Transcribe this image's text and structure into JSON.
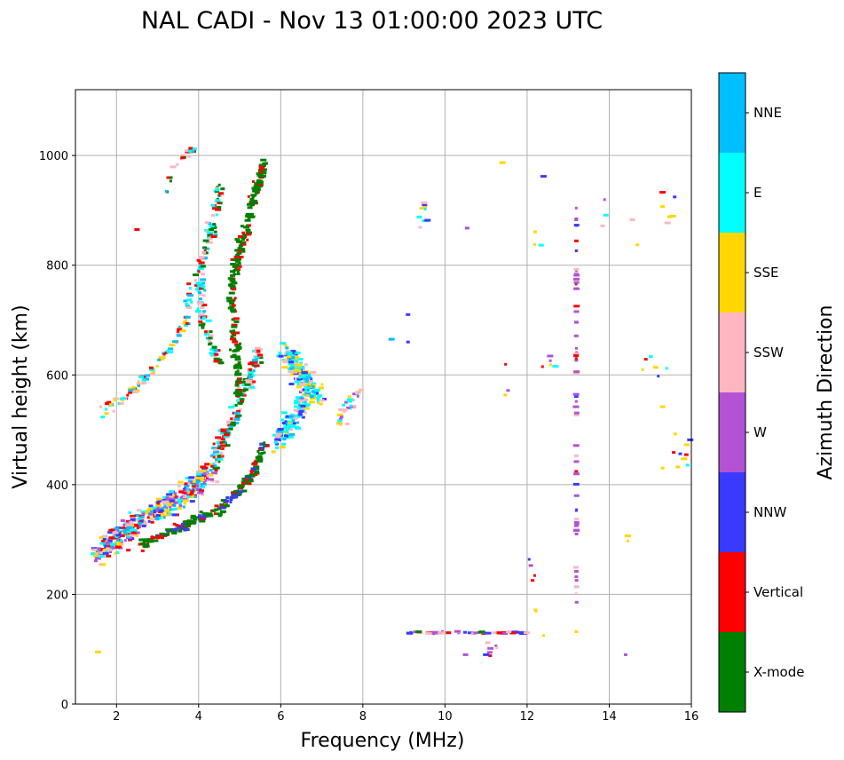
{
  "chart_data": {
    "type": "scatter",
    "title": "NAL CADI - Nov 13 01:00:00 2023 UTC",
    "xlabel": "Frequency (MHz)",
    "ylabel": "Virtual height (km)",
    "xlim": [
      1,
      16
    ],
    "ylim": [
      0,
      1120
    ],
    "xticks": [
      2,
      4,
      6,
      8,
      10,
      12,
      14,
      16
    ],
    "yticks": [
      0,
      200,
      400,
      600,
      800,
      1000
    ],
    "grid": true,
    "colorbar": {
      "title": "Azimuth Direction",
      "categories": [
        {
          "name": "X-mode",
          "color": "#008000"
        },
        {
          "name": "Vertical",
          "color": "#ff0000"
        },
        {
          "name": "NNW",
          "color": "#3a3aff"
        },
        {
          "name": "W",
          "color": "#b452d6"
        },
        {
          "name": "SSW",
          "color": "#ffb6c1"
        },
        {
          "name": "SSE",
          "color": "#ffd700"
        },
        {
          "name": "E",
          "color": "#00ffff"
        },
        {
          "name": "NNE",
          "color": "#00bfff"
        }
      ]
    },
    "clusters": [
      {
        "name": "F-trace-low-O",
        "points": [
          [
            1.5,
            265
          ],
          [
            1.8,
            290
          ],
          [
            2.1,
            310
          ],
          [
            2.4,
            325
          ],
          [
            2.8,
            345
          ],
          [
            3.2,
            360
          ],
          [
            3.6,
            380
          ],
          [
            4.0,
            400
          ],
          [
            4.3,
            430
          ]
        ],
        "spread": [
          0.35,
          40
        ],
        "count": 420,
        "colors": [
          "Vertical",
          "SSW",
          "NNW",
          "SSE",
          "NNE",
          "E",
          "W"
        ]
      },
      {
        "name": "F-trace-upper-O",
        "points": [
          [
            4.3,
            430
          ],
          [
            4.6,
            480
          ],
          [
            4.9,
            530
          ],
          [
            5.2,
            590
          ],
          [
            5.5,
            640
          ]
        ],
        "spread": [
          0.25,
          40
        ],
        "count": 160,
        "colors": [
          "Vertical",
          "NNE",
          "E",
          "X-mode",
          "SSW"
        ]
      },
      {
        "name": "F-trace-X",
        "points": [
          [
            2.6,
            290
          ],
          [
            3.2,
            310
          ],
          [
            3.8,
            330
          ],
          [
            4.4,
            350
          ],
          [
            4.9,
            380
          ],
          [
            5.3,
            420
          ],
          [
            5.6,
            470
          ]
        ],
        "spread": [
          0.18,
          18
        ],
        "count": 220,
        "colors": [
          "X-mode",
          "X-mode",
          "X-mode",
          "Vertical",
          "NNW"
        ]
      },
      {
        "name": "X-mode-stack",
        "points": [
          [
            5.0,
            560
          ],
          [
            4.9,
            660
          ],
          [
            4.8,
            760
          ],
          [
            5.1,
            850
          ],
          [
            5.4,
            940
          ],
          [
            5.6,
            985
          ]
        ],
        "spread": [
          0.2,
          30
        ],
        "count": 230,
        "colors": [
          "X-mode",
          "X-mode",
          "X-mode",
          "X-mode",
          "Vertical"
        ]
      },
      {
        "name": "middle-stack",
        "points": [
          [
            4.5,
            620
          ],
          [
            4.1,
            700
          ],
          [
            4.0,
            780
          ],
          [
            4.3,
            860
          ],
          [
            4.5,
            940
          ]
        ],
        "spread": [
          0.22,
          30
        ],
        "count": 130,
        "colors": [
          "Vertical",
          "X-mode",
          "NNE",
          "E",
          "SSW"
        ]
      },
      {
        "name": "oblique-upper",
        "points": [
          [
            1.6,
            530
          ],
          [
            2.0,
            550
          ],
          [
            2.5,
            580
          ],
          [
            3.0,
            620
          ],
          [
            3.4,
            660
          ],
          [
            3.7,
            700
          ],
          [
            3.8,
            760
          ]
        ],
        "spread": [
          0.15,
          18
        ],
        "count": 90,
        "colors": [
          "E",
          "NNE",
          "Vertical",
          "SSW",
          "SSE"
        ]
      },
      {
        "name": "spread-F-patch",
        "points": [
          [
            5.9,
            470
          ],
          [
            6.3,
            520
          ],
          [
            6.7,
            560
          ],
          [
            6.5,
            610
          ],
          [
            6.1,
            640
          ],
          [
            7.0,
            560
          ]
        ],
        "spread": [
          0.38,
          40
        ],
        "count": 300,
        "colors": [
          "E",
          "E",
          "NNE",
          "SSW",
          "SSE",
          "NNW"
        ]
      },
      {
        "name": "patch-right",
        "points": [
          [
            7.4,
            520
          ],
          [
            7.7,
            550
          ],
          [
            7.9,
            580
          ]
        ],
        "spread": [
          0.25,
          30
        ],
        "count": 30,
        "colors": [
          "W",
          "SSW",
          "SSE",
          "E"
        ]
      },
      {
        "name": "top-scatter",
        "points": [
          [
            3.2,
            930
          ],
          [
            3.5,
            995
          ],
          [
            3.8,
            1005
          ],
          [
            3.9,
            1010
          ]
        ],
        "spread": [
          0.15,
          15
        ],
        "count": 22,
        "colors": [
          "Vertical",
          "NNE",
          "X-mode",
          "SSW",
          "E"
        ]
      },
      {
        "name": "E-layer-echo",
        "points": [
          [
            9.0,
            130
          ],
          [
            9.6,
            130
          ],
          [
            10.2,
            130
          ],
          [
            10.8,
            130
          ],
          [
            11.5,
            130
          ],
          [
            12.0,
            130
          ]
        ],
        "spread": [
          0.3,
          4
        ],
        "count": 55,
        "colors": [
          "X-mode",
          "W",
          "NNW",
          "Vertical",
          "SSW"
        ]
      },
      {
        "name": "vertical-column",
        "points": [
          [
            13.2,
            200
          ],
          [
            13.2,
            350
          ],
          [
            13.2,
            500
          ],
          [
            13.2,
            650
          ],
          [
            13.2,
            800
          ],
          [
            13.2,
            920
          ]
        ],
        "spread": [
          0.02,
          60
        ],
        "count": 60,
        "colors": [
          "W",
          "W",
          "W",
          "NNW",
          "Vertical",
          "SSW"
        ]
      },
      {
        "name": "far-scatter",
        "points": [
          [
            9.5,
            900
          ],
          [
            10.5,
            870
          ],
          [
            11.5,
            580
          ],
          [
            12.2,
            840
          ],
          [
            12.5,
            620
          ],
          [
            14.0,
            890
          ],
          [
            14.5,
            860
          ],
          [
            15.0,
            620
          ],
          [
            15.5,
            900
          ],
          [
            15.8,
            460
          ],
          [
            14.5,
            300
          ],
          [
            12.3,
            180
          ],
          [
            12.1,
            250
          ],
          [
            11.2,
            90
          ]
        ],
        "spread": [
          0.5,
          55
        ],
        "count": 60,
        "colors": [
          "SSE",
          "W",
          "NNW",
          "SSW",
          "Vertical",
          "E",
          "SSE"
        ]
      }
    ],
    "fixed_points": [
      {
        "x": 1.55,
        "y": 95,
        "color": "SSE"
      },
      {
        "x": 2.5,
        "y": 865,
        "color": "Vertical"
      },
      {
        "x": 9.1,
        "y": 710,
        "color": "NNW"
      },
      {
        "x": 9.1,
        "y": 660,
        "color": "NNW"
      },
      {
        "x": 8.7,
        "y": 665,
        "color": "NNE"
      },
      {
        "x": 15.3,
        "y": 933,
        "color": "Vertical"
      },
      {
        "x": 15.3,
        "y": 907,
        "color": "SSE"
      },
      {
        "x": 15.3,
        "y": 542,
        "color": "SSE"
      },
      {
        "x": 15.3,
        "y": 430,
        "color": "SSE"
      },
      {
        "x": 12.4,
        "y": 962,
        "color": "NNW"
      },
      {
        "x": 12.4,
        "y": 125,
        "color": "SSE"
      },
      {
        "x": 13.2,
        "y": 132,
        "color": "SSE"
      },
      {
        "x": 14.4,
        "y": 90,
        "color": "W"
      },
      {
        "x": 10.5,
        "y": 90,
        "color": "W"
      },
      {
        "x": 11.0,
        "y": 90,
        "color": "NNW"
      },
      {
        "x": 11.4,
        "y": 987,
        "color": "SSE"
      },
      {
        "x": 15.4,
        "y": 612,
        "color": "E"
      }
    ]
  }
}
